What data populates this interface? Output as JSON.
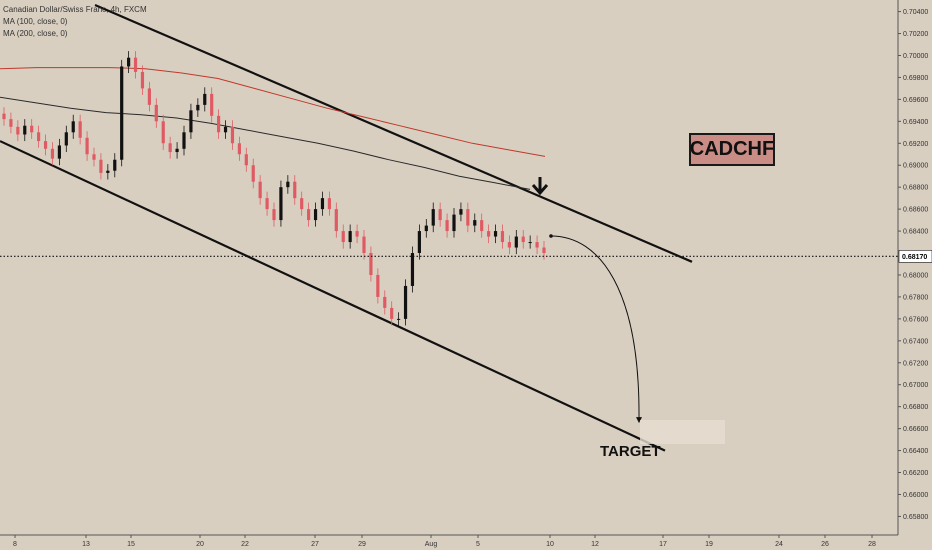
{
  "legend": {
    "symbol_line": "Canadian Dollar/Swiss Franc, 4h, FXCM",
    "ma100_line": "MA (100, close, 0)",
    "ma200_line": "MA (200, close, 0)"
  },
  "annotations": {
    "symbol_box": "CADCHF",
    "target": "TARGET"
  },
  "colors": {
    "background": "#d9cfc1",
    "up_candle": "#111111",
    "down_candle": "#e05a64",
    "ma100": "#2a2a2a",
    "ma200": "#c0392b",
    "symbol_box": "#c98d85"
  },
  "chart_data": {
    "type": "candlestick",
    "title": "Canadian Dollar/Swiss Franc, 4h, FXCM",
    "x_tick_labels": [
      "8",
      "13",
      "15",
      "20",
      "22",
      "27",
      "29",
      "Aug",
      "5",
      "10",
      "12",
      "17",
      "19",
      "24",
      "26",
      "28"
    ],
    "y_tick_labels": [
      "0.70400",
      "0.70200",
      "0.70000",
      "0.69800",
      "0.69600",
      "0.69400",
      "0.69200",
      "0.69000",
      "0.68800",
      "0.68600",
      "0.68400",
      "0.68200",
      "0.68000",
      "0.67800",
      "0.67600",
      "0.67400",
      "0.67200",
      "0.67000",
      "0.66800",
      "0.66600",
      "0.66400",
      "0.66200",
      "0.66000",
      "0.65800"
    ],
    "ylim": [
      0.6574,
      0.7046
    ],
    "current_price": "0.68170",
    "grid": false,
    "series": [
      {
        "name": "MA (100, close, 0)",
        "values": [
          0.6962,
          0.6957,
          0.6952,
          0.6948,
          0.6946,
          0.6943,
          0.6938,
          0.6932,
          0.6926,
          0.692,
          0.6913,
          0.6905,
          0.6898,
          0.689,
          0.6884,
          0.6878
        ]
      },
      {
        "name": "MA (200, close, 0)",
        "values": [
          0.6988,
          0.6989,
          0.6989,
          0.6989,
          0.6988,
          0.6984,
          0.6979,
          0.697,
          0.6961,
          0.6952,
          0.6944,
          0.6936,
          0.6928,
          0.692,
          0.6914,
          0.6908
        ]
      }
    ],
    "candles_close": [
      0.6942,
      0.6935,
      0.6928,
      0.6936,
      0.693,
      0.6922,
      0.6915,
      0.6906,
      0.6918,
      0.693,
      0.694,
      0.6925,
      0.691,
      0.6905,
      0.6893,
      0.6895,
      0.6905,
      0.699,
      0.6998,
      0.6985,
      0.697,
      0.6955,
      0.694,
      0.692,
      0.6912,
      0.6915,
      0.693,
      0.695,
      0.6955,
      0.6965,
      0.6945,
      0.693,
      0.6935,
      0.692,
      0.691,
      0.69,
      0.6885,
      0.687,
      0.686,
      0.685,
      0.688,
      0.6885,
      0.687,
      0.686,
      0.685,
      0.686,
      0.687,
      0.686,
      0.684,
      0.683,
      0.684,
      0.6835,
      0.682,
      0.68,
      0.678,
      0.677,
      0.676,
      0.676,
      0.679,
      0.682,
      0.684,
      0.6845,
      0.686,
      0.685,
      0.684,
      0.6855,
      0.686,
      0.6845,
      0.685,
      0.684,
      0.6835,
      0.684,
      0.683,
      0.6825,
      0.6835,
      0.683,
      0.683,
      0.6825,
      0.682
    ],
    "channel": {
      "upper_line": [
        [
          0.7046,
          0.6812
        ],
        [
          0.0,
          1.0
        ]
      ],
      "lower_line": [
        [
          0.6922,
          0.664
        ],
        [
          0.0,
          1.0
        ]
      ]
    },
    "projection_target": 0.6665
  }
}
